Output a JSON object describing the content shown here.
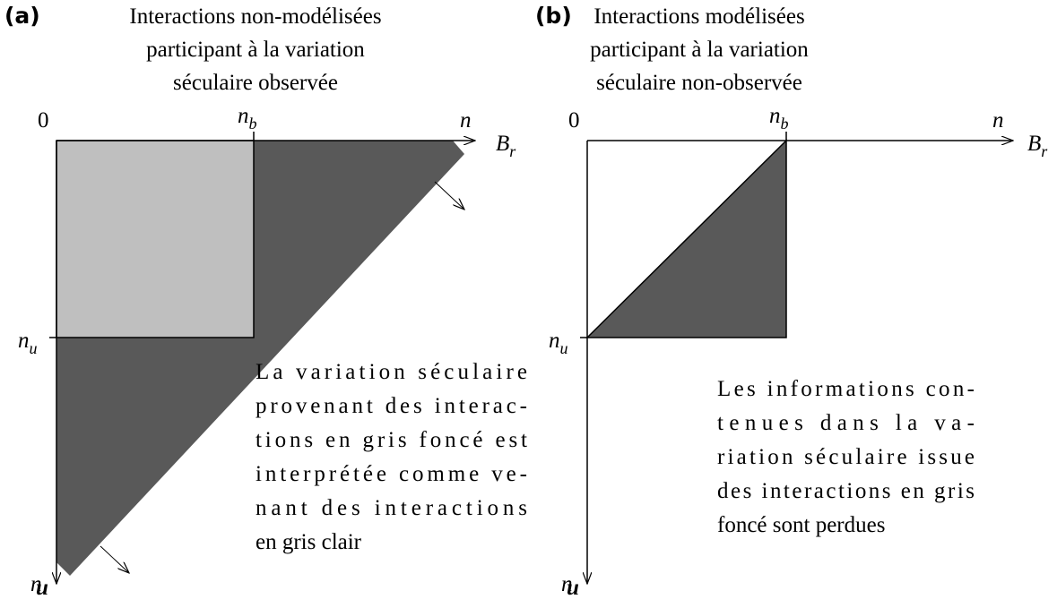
{
  "panels": [
    {
      "label": "(a)",
      "title": [
        "Interactions non-modélisées",
        "participant à la variation",
        "séculaire observée"
      ],
      "origin": "0",
      "x_tick": {
        "base": "n",
        "sub": "b"
      },
      "y_tick": {
        "base": "n",
        "sub": "u"
      },
      "x_axis": {
        "name": "n",
        "base": "B",
        "sub": "r"
      },
      "y_axis": {
        "name": "n",
        "vector": "u"
      },
      "text": [
        "La variation séculaire",
        "provenant des interac-",
        "tions en gris foncé est",
        "interprétée comme ve-",
        "nant des interactions",
        "en gris clair"
      ]
    },
    {
      "label": "(b)",
      "title": [
        "Interactions modélisées",
        "participant à la variation",
        "séculaire non-observée"
      ],
      "origin": "0",
      "x_tick": {
        "base": "n",
        "sub": "b"
      },
      "y_tick": {
        "base": "n",
        "sub": "u"
      },
      "x_axis": {
        "name": "n",
        "base": "B",
        "sub": "r"
      },
      "y_axis": {
        "name": "n",
        "vector": "u"
      },
      "text": [
        "Les informations con-",
        "tenues dans la va-",
        "riation séculaire issue",
        "des interactions en gris",
        "foncé sont perdues"
      ]
    }
  ]
}
